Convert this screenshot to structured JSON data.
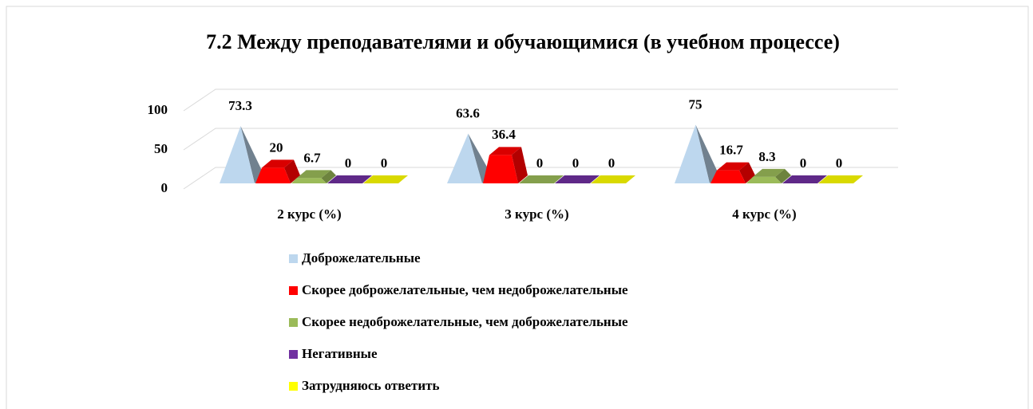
{
  "chart_data": {
    "type": "bar",
    "title": "7.2 Между преподавателями и обучающимися (в учебном процессе)",
    "categories": [
      "2 курс (%)",
      "3 курс (%)",
      "4 курс (%)"
    ],
    "series": [
      {
        "name": "Доброжелательные",
        "color": "#bdd7ee",
        "values": [
          73.3,
          63.6,
          75
        ]
      },
      {
        "name": "Скорее доброжелательные, чем недоброжелательные",
        "color": "#ff0000",
        "values": [
          20,
          36.4,
          16.7
        ]
      },
      {
        "name": "Скорее недоброжелательные, чем доброжелательные",
        "color": "#9bbb59",
        "values": [
          6.7,
          0,
          8.3
        ]
      },
      {
        "name": "Негативные",
        "color": "#7030a0",
        "values": [
          0,
          0,
          0
        ]
      },
      {
        "name": "Затрудняюсь ответить",
        "color": "#ffff00",
        "values": [
          0,
          0,
          0
        ]
      }
    ],
    "ylim": [
      0,
      100
    ],
    "yticks": [
      0,
      50,
      100
    ],
    "grid": true,
    "legend": "bottom"
  }
}
